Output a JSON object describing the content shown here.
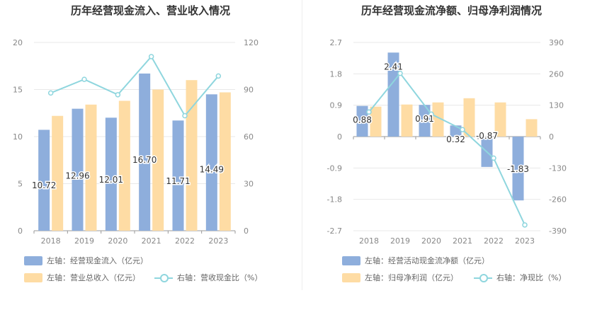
{
  "colors": {
    "bar_blue": "#8eaedc",
    "bar_orange": "#fedca4",
    "line": "#8fd6de",
    "grid": "#e8e8e8",
    "axis_text": "#888888"
  },
  "chart_data": [
    {
      "type": "bar",
      "title": "历年经营现金流入、营业收入情况",
      "categories": [
        "2018",
        "2019",
        "2020",
        "2021",
        "2022",
        "2023"
      ],
      "left_axis": {
        "ticks": [
          "0",
          "5",
          "10",
          "15",
          "20"
        ],
        "ylim": [
          0,
          20
        ]
      },
      "right_axis": {
        "ticks": [
          "0",
          "30",
          "60",
          "90",
          "120"
        ],
        "ylim": [
          0,
          120
        ]
      },
      "series": [
        {
          "name": "左轴：经营现金流入（亿元）",
          "axis": "left",
          "kind": "bar",
          "color": "#8eaedc",
          "values": [
            10.72,
            12.96,
            12.01,
            16.7,
            11.71,
            14.49
          ],
          "labels": [
            "10.72",
            "12.96",
            "12.01",
            "16.70",
            "11.71",
            "14.49"
          ]
        },
        {
          "name": "左轴：营业总收入（亿元）",
          "axis": "left",
          "kind": "bar",
          "color": "#fedca4",
          "values": [
            12.2,
            13.4,
            13.8,
            15.0,
            16.0,
            14.7
          ]
        },
        {
          "name": "右轴：营收现金比（%）",
          "axis": "right",
          "kind": "line",
          "color": "#8fd6de",
          "values": [
            87.8,
            96.5,
            86.7,
            111.0,
            73.3,
            98.6
          ]
        }
      ]
    },
    {
      "type": "bar",
      "title": "历年经营现金流净额、归母净利润情况",
      "categories": [
        "2018",
        "2019",
        "2020",
        "2021",
        "2022",
        "2023"
      ],
      "left_axis": {
        "ticks": [
          "-2.7",
          "-1.8",
          "-0.9",
          "0",
          "0.9",
          "1.8",
          "2.7"
        ],
        "ylim": [
          -2.7,
          2.7
        ]
      },
      "right_axis": {
        "ticks": [
          "-390",
          "-260",
          "-130",
          "0",
          "130",
          "260",
          "390"
        ],
        "ylim": [
          -390,
          390
        ]
      },
      "series": [
        {
          "name": "左轴：经营活动现金流净额（亿元）",
          "axis": "left",
          "kind": "bar",
          "color": "#8eaedc",
          "values": [
            0.88,
            2.41,
            0.91,
            0.32,
            -0.87,
            -1.83
          ],
          "labels": [
            "0.88",
            "2.41",
            "0.91",
            "0.32",
            "-0.87",
            "-1.83"
          ]
        },
        {
          "name": "左轴：归母净利润（亿元）",
          "axis": "left",
          "kind": "bar",
          "color": "#fedca4",
          "values": [
            0.86,
            0.92,
            0.98,
            1.1,
            0.98,
            0.5
          ]
        },
        {
          "name": "右轴：净现比（%）",
          "axis": "right",
          "kind": "line",
          "color": "#8fd6de",
          "values": [
            102,
            262,
            93,
            29,
            -89,
            -366
          ]
        }
      ]
    }
  ]
}
